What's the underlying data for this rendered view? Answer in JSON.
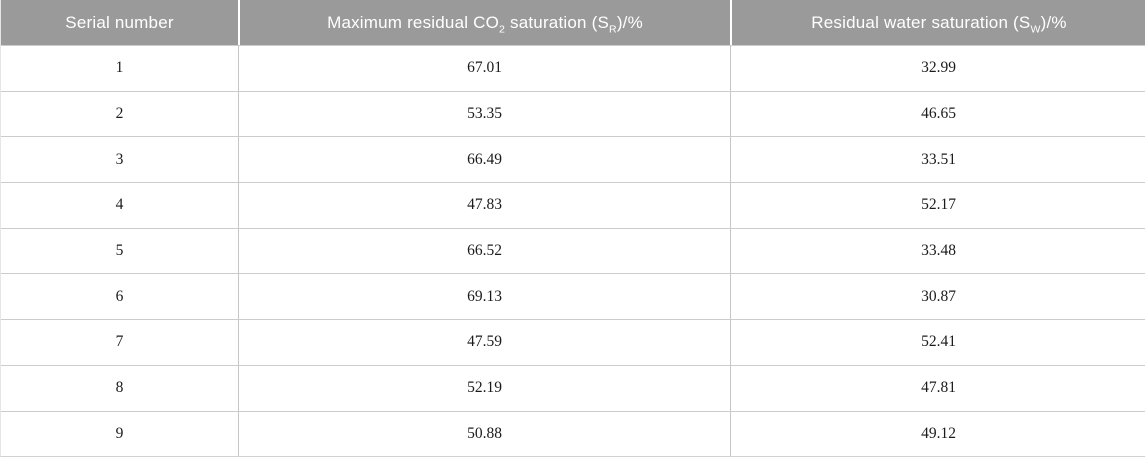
{
  "colors": {
    "header_background": "#9a9a9a",
    "header_text": "#ffffff",
    "row_divider": "#cccccc",
    "column_divider": "#c6c6c6",
    "body_text": "#1b1b1b"
  },
  "table": {
    "header": {
      "serial": {
        "label": "Serial number"
      },
      "co2": {
        "pre": "Maximum residual CO",
        "sub1": "2",
        "mid": " saturation (S",
        "sub2": "R",
        "post": ")/%"
      },
      "water": {
        "pre": "Residual water saturation (S",
        "sub": "W",
        "post": ")/%"
      }
    },
    "rows": [
      {
        "serial": "1",
        "co2": "67.01",
        "water": "32.99"
      },
      {
        "serial": "2",
        "co2": "53.35",
        "water": "46.65"
      },
      {
        "serial": "3",
        "co2": "66.49",
        "water": "33.51"
      },
      {
        "serial": "4",
        "co2": "47.83",
        "water": "52.17"
      },
      {
        "serial": "5",
        "co2": "66.52",
        "water": "33.48"
      },
      {
        "serial": "6",
        "co2": "69.13",
        "water": "30.87"
      },
      {
        "serial": "7",
        "co2": "47.59",
        "water": "52.41"
      },
      {
        "serial": "8",
        "co2": "52.19",
        "water": "47.81"
      },
      {
        "serial": "9",
        "co2": "50.88",
        "water": "49.12"
      }
    ]
  }
}
